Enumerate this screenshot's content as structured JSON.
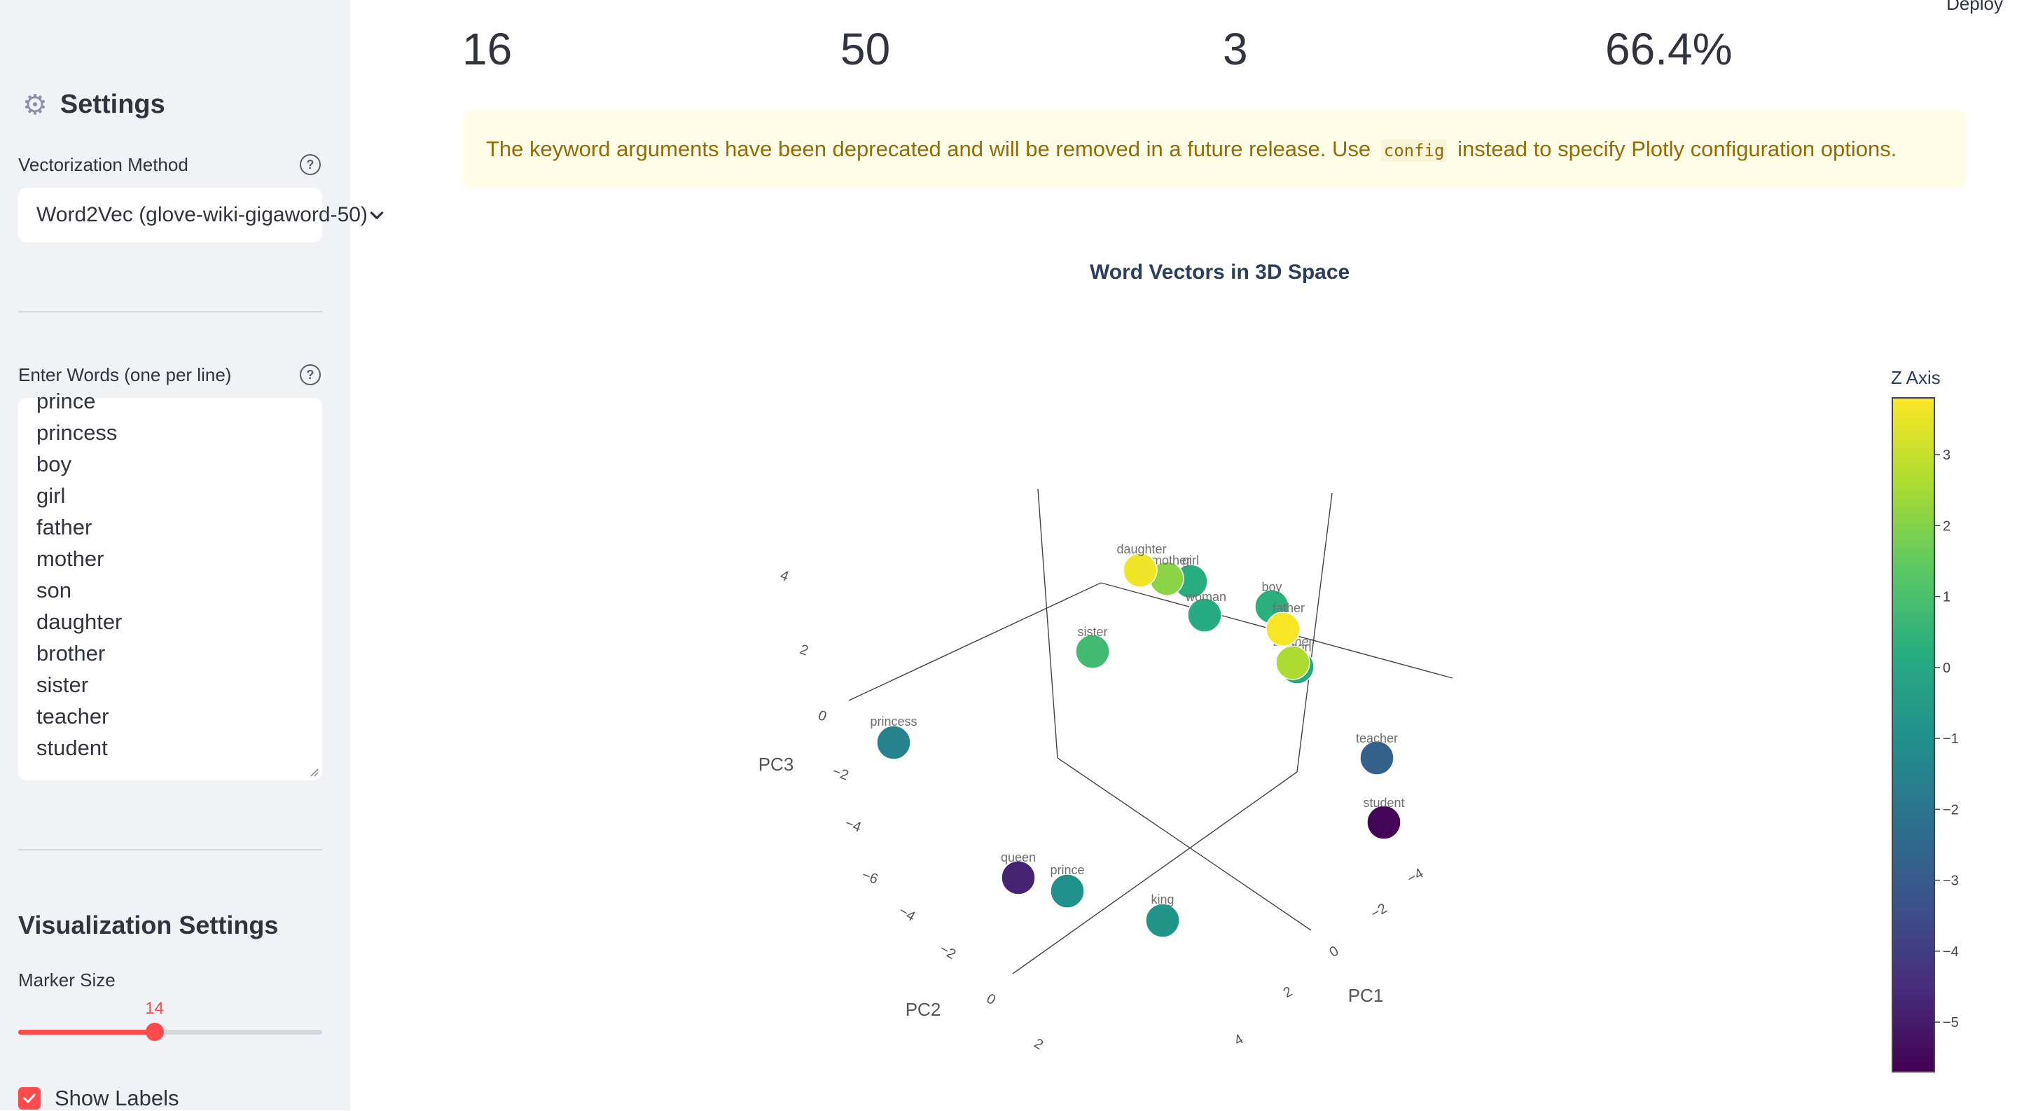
{
  "sidebar": {
    "settings_title": "Settings",
    "vectorization": {
      "label": "Vectorization Method",
      "value": "Word2Vec (glove-wiki-gigaword-50)"
    },
    "words": {
      "label": "Enter Words (one per line)",
      "lines": [
        "prince",
        "princess",
        "boy",
        "girl",
        "father",
        "mother",
        "son",
        "daughter",
        "brother",
        "sister",
        "teacher",
        "student"
      ]
    },
    "viz_title": "Visualization Settings",
    "marker_size": {
      "label": "Marker Size",
      "value": "14",
      "min": 1,
      "max": 30,
      "current": 14
    },
    "show_labels": {
      "label": "Show Labels",
      "checked": true
    }
  },
  "header": {
    "deploy_label": "Deploy"
  },
  "metrics": [
    "16",
    "50",
    "3",
    "66.4%"
  ],
  "warning": {
    "before": "The keyword arguments have been deprecated and will be removed in a future release. Use",
    "code": "config",
    "after": "instead to specify Plotly configuration options."
  },
  "chart_data": {
    "type": "scatter",
    "title": "Word Vectors in 3D Space",
    "axes": {
      "x": "PC1",
      "y": "PC2",
      "z": "PC3"
    },
    "colorbar": {
      "title": "Z Axis",
      "colorscale": "Viridis",
      "tick_labels": [
        "3",
        "2",
        "1",
        "0",
        "−1",
        "−2",
        "−3",
        "−4",
        "−5"
      ],
      "range": [
        -5.7,
        3.8
      ]
    },
    "tick_labels": {
      "pc3": [
        "4",
        "2",
        "0",
        "−2",
        "−4",
        "−6"
      ],
      "pc2": [
        "−4",
        "−2",
        "0",
        "2"
      ],
      "pc1": [
        "−4",
        "−2",
        "0",
        "2",
        "4"
      ]
    },
    "points": [
      {
        "label": "daughter",
        "z": 3.6
      },
      {
        "label": "mother",
        "z": 2.1
      },
      {
        "label": "girl",
        "z": 0.2
      },
      {
        "label": "woman",
        "z": 0.1
      },
      {
        "label": "boy",
        "z": 0.3
      },
      {
        "label": "father",
        "z": 3.7
      },
      {
        "label": "brother",
        "z": 2.6
      },
      {
        "label": "son",
        "z": 0.0
      },
      {
        "label": "sister",
        "z": 0.8
      },
      {
        "label": "princess",
        "z": -1.5
      },
      {
        "label": "teacher",
        "z": -2.8
      },
      {
        "label": "student",
        "z": -5.6
      },
      {
        "label": "queen",
        "z": -4.8
      },
      {
        "label": "prince",
        "z": -0.9
      },
      {
        "label": "king",
        "z": -0.8
      }
    ]
  }
}
